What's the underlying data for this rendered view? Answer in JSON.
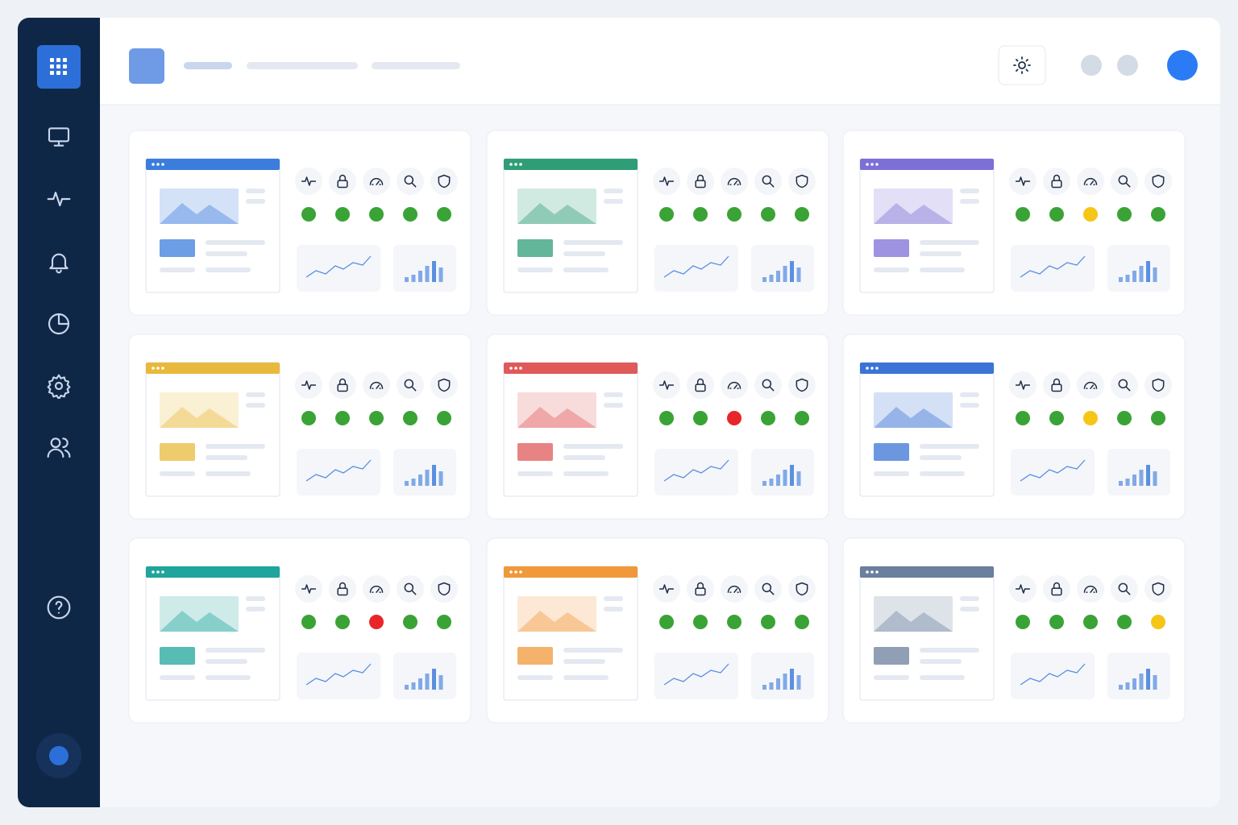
{
  "status_colors": {
    "ok": "#3aa335",
    "warning": "#f5c518",
    "error": "#e8262a"
  },
  "cards": [
    {
      "accent": "#3b7ddd",
      "status": [
        "ok",
        "ok",
        "ok",
        "ok",
        "ok"
      ]
    },
    {
      "accent": "#2f9e77",
      "status": [
        "ok",
        "ok",
        "ok",
        "ok",
        "ok"
      ]
    },
    {
      "accent": "#7c6fd6",
      "status": [
        "ok",
        "ok",
        "warning",
        "ok",
        "ok"
      ]
    },
    {
      "accent": "#e8b93c",
      "status": [
        "ok",
        "ok",
        "ok",
        "ok",
        "ok"
      ]
    },
    {
      "accent": "#e05a5a",
      "status": [
        "ok",
        "ok",
        "error",
        "ok",
        "ok"
      ]
    },
    {
      "accent": "#3b74d6",
      "status": [
        "ok",
        "ok",
        "warning",
        "ok",
        "ok"
      ]
    },
    {
      "accent": "#1fa59b",
      "status": [
        "ok",
        "ok",
        "error",
        "ok",
        "ok"
      ]
    },
    {
      "accent": "#f0983a",
      "status": [
        "ok",
        "ok",
        "ok",
        "ok",
        "ok"
      ]
    },
    {
      "accent": "#6b7f9e",
      "status": [
        "ok",
        "ok",
        "ok",
        "ok",
        "warning"
      ]
    }
  ]
}
